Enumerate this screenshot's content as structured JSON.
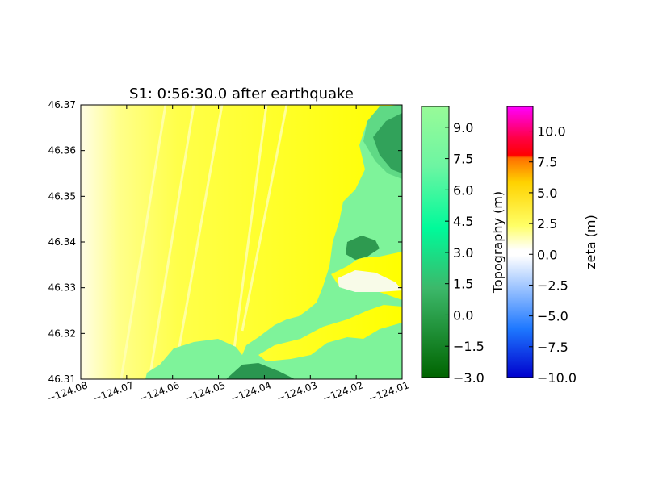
{
  "figure": {
    "title": "S1: 0:56:30.0 after earthquake"
  },
  "chart_data": {
    "type": "heatmap",
    "title": "S1: 0:56:30.0 after earthquake",
    "xlabel": "",
    "ylabel": "",
    "xlim": [
      -124.08,
      -124.01
    ],
    "ylim": [
      46.31,
      46.37
    ],
    "xticks": [
      "−124.08",
      "−124.07",
      "−124.06",
      "−124.05",
      "−124.04",
      "−124.03",
      "−124.02",
      "−124.01"
    ],
    "yticks": [
      "46.37",
      "46.36",
      "46.35",
      "46.34",
      "46.33",
      "46.32",
      "46.31"
    ],
    "topography_colorbar": {
      "label": "Topography (m)",
      "range": [
        -3.0,
        10.0
      ],
      "ticks": [
        "9.0",
        "7.5",
        "6.0",
        "4.5",
        "3.0",
        "1.5",
        "0.0",
        "−1.5",
        "−3.0"
      ],
      "colors": {
        "bottom": "#006400",
        "middle": "#00fa9a",
        "top": "#98fb98"
      }
    },
    "zeta_colorbar": {
      "label": "zeta (m)",
      "range": [
        -10.0,
        12.0
      ],
      "ticks": [
        "10.0",
        "7.5",
        "5.0",
        "2.5",
        "0.0",
        "−2.5",
        "−5.0",
        "−7.5",
        "−10.0"
      ],
      "colors": {
        "min": "#0000cd",
        "zero": "#ffffff",
        "mid": "#ffff00",
        "high": "#ff0000",
        "max": "#ff00ff"
      }
    },
    "water_color": "#ffff00",
    "land_color": "#7ef39a"
  }
}
